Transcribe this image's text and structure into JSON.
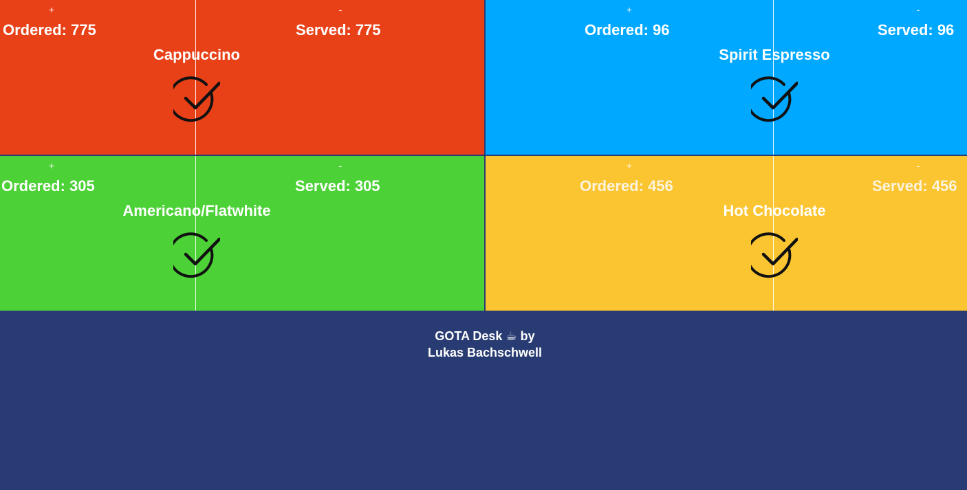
{
  "tiles": [
    {
      "name": "Cappuccino",
      "plus": "+",
      "minus": "-",
      "ordered": "Ordered: 775",
      "served": "Served: 775",
      "color": "#e84118"
    },
    {
      "name": "Spirit Espresso",
      "plus": "+",
      "minus": "-",
      "ordered": "Ordered: 96",
      "served": "Served: 96",
      "color": "#00a8ff"
    },
    {
      "name": "Americano/Flatwhite",
      "plus": "+",
      "minus": "-",
      "ordered": "Ordered: 305",
      "served": "Served: 305",
      "color": "#4cd137"
    },
    {
      "name": "Hot Chocolate",
      "plus": "+",
      "minus": "-",
      "ordered": "Ordered: 456",
      "served": "Served: 456",
      "color": "#fbc531"
    }
  ],
  "footer": {
    "line1": "GOTA Desk ☕ by",
    "line2": "Lukas Bachschwell",
    "background": "#283c73"
  },
  "icons": {
    "check": "check-circle-icon"
  }
}
